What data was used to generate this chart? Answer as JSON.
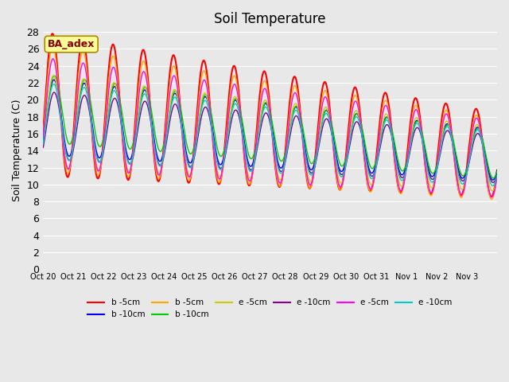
{
  "title": "Soil Temperature",
  "ylabel": "Soil Temperature (C)",
  "annotation": "BA_adex",
  "annotation_color": "#8B0000",
  "annotation_bg": "#FFFF99",
  "annotation_edge": "#AA8800",
  "ylim": [
    0,
    28
  ],
  "yticks": [
    0,
    2,
    4,
    6,
    8,
    10,
    12,
    14,
    16,
    18,
    20,
    22,
    24,
    26,
    28
  ],
  "date_labels": [
    "Oct 20",
    "Oct 21",
    "Oct 22",
    "Oct 23",
    "Oct 24",
    "Oct 25",
    "Oct 26",
    "Oct 27",
    "Oct 28",
    "Oct 29",
    "Oct 30",
    "Oct 31",
    "Nov 1",
    "Nov 2",
    "Nov 3"
  ],
  "legend_entries": [
    {
      "label": "b -5cm",
      "color": "#FF0000"
    },
    {
      "label": "b -10cm",
      "color": "#0000FF"
    },
    {
      "label": "b -5cm",
      "color": "#FFA500"
    },
    {
      "label": "b -10cm",
      "color": "#00CC00"
    },
    {
      "label": "e -5cm",
      "color": "#CCCC00"
    },
    {
      "label": "e -10cm",
      "color": "#880088"
    },
    {
      "label": "e -5cm",
      "color": "#FF00FF"
    },
    {
      "label": "e -10cm",
      "color": "#00CCCC"
    }
  ],
  "line_colors": [
    "#FF0000",
    "#0000FF",
    "#FFA500",
    "#00CC00",
    "#CCCC00",
    "#880088",
    "#FF00FF",
    "#00CCCC"
  ],
  "background_color": "#E8E8E8",
  "grid_color": "#FFFFFF",
  "title_fontsize": 12,
  "label_fontsize": 9,
  "tick_fontsize": 7,
  "legend_fontsize": 7.5
}
